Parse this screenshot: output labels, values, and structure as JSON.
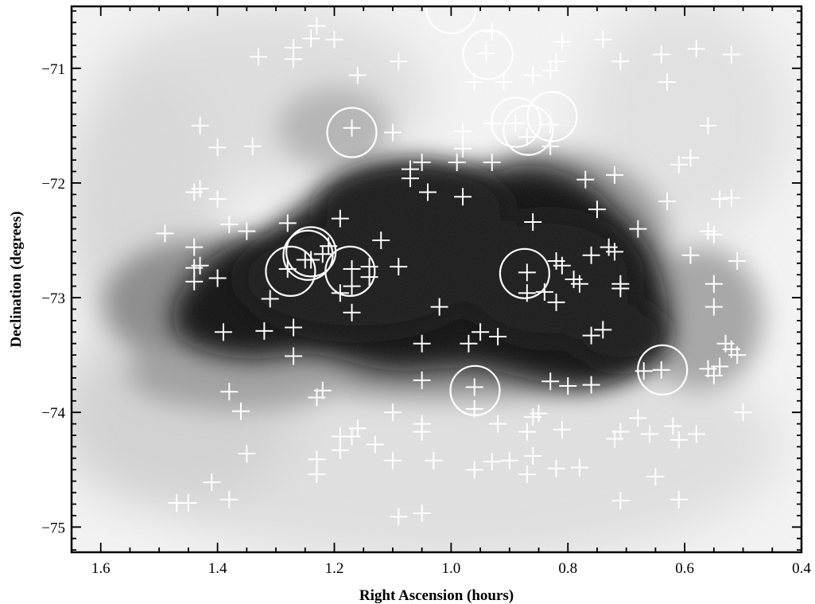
{
  "chart_data": {
    "type": "scatter",
    "xlabel": "Right Ascension (hours)",
    "ylabel": "Declination (degrees)",
    "xlim": [
      1.65,
      0.4
    ],
    "ylim": [
      -75.22,
      -70.46
    ],
    "x_ticks": [
      "1.6",
      "1.4",
      "1.2",
      "1.0",
      "0.8",
      "0.6",
      "0.4"
    ],
    "y_ticks": [
      "-71",
      "-72",
      "-73",
      "-74",
      "-75"
    ],
    "x_reversed": true,
    "background": "greyscale HI column density image of the Small Magellanic Cloud",
    "series": [
      {
        "marker": "plus",
        "color": "#ffffff",
        "points": [
          [
            1.23,
            -70.63
          ],
          [
            1.27,
            -70.82
          ],
          [
            1.24,
            -70.74
          ],
          [
            1.2,
            -70.75
          ],
          [
            1.33,
            -70.9
          ],
          [
            1.27,
            -70.92
          ],
          [
            1.09,
            -70.94
          ],
          [
            0.94,
            -70.87
          ],
          [
            0.93,
            -70.68
          ],
          [
            0.81,
            -70.77
          ],
          [
            0.82,
            -70.94
          ],
          [
            0.74,
            -70.75
          ],
          [
            0.71,
            -70.94
          ],
          [
            0.64,
            -70.88
          ],
          [
            0.58,
            -70.83
          ],
          [
            0.52,
            -70.88
          ],
          [
            0.63,
            -71.12
          ],
          [
            0.96,
            -71.12
          ],
          [
            0.91,
            -71.12
          ],
          [
            0.86,
            -71.06
          ],
          [
            0.83,
            -71.02
          ],
          [
            1.16,
            -71.06
          ],
          [
            1.43,
            -71.5
          ],
          [
            1.4,
            -71.69
          ],
          [
            1.34,
            -71.68
          ],
          [
            1.17,
            -71.52
          ],
          [
            1.1,
            -71.56
          ],
          [
            0.98,
            -71.55
          ],
          [
            0.93,
            -71.48
          ],
          [
            0.89,
            -71.48
          ],
          [
            0.83,
            -71.49
          ],
          [
            0.87,
            -71.6
          ],
          [
            0.83,
            -71.68
          ],
          [
            0.56,
            -71.5
          ],
          [
            0.59,
            -71.78
          ],
          [
            0.61,
            -71.84
          ],
          [
            0.98,
            -71.7
          ],
          [
            0.93,
            -71.82
          ],
          [
            0.99,
            -71.82
          ],
          [
            1.05,
            -71.82
          ],
          [
            1.07,
            -71.88
          ],
          [
            1.07,
            -71.96
          ],
          [
            0.77,
            -71.97
          ],
          [
            0.72,
            -71.93
          ],
          [
            1.43,
            -72.05
          ],
          [
            1.44,
            -72.08
          ],
          [
            1.4,
            -72.14
          ],
          [
            1.04,
            -72.08
          ],
          [
            0.98,
            -72.12
          ],
          [
            0.63,
            -72.16
          ],
          [
            0.54,
            -72.14
          ],
          [
            0.52,
            -72.13
          ],
          [
            1.38,
            -72.36
          ],
          [
            1.35,
            -72.42
          ],
          [
            1.28,
            -72.35
          ],
          [
            1.19,
            -72.31
          ],
          [
            1.49,
            -72.44
          ],
          [
            1.44,
            -72.56
          ],
          [
            1.21,
            -72.55
          ],
          [
            1.12,
            -72.5
          ],
          [
            0.86,
            -72.34
          ],
          [
            0.75,
            -72.23
          ],
          [
            0.68,
            -72.4
          ],
          [
            0.56,
            -72.42
          ],
          [
            0.55,
            -72.45
          ],
          [
            0.59,
            -72.63
          ],
          [
            0.51,
            -72.68
          ],
          [
            1.44,
            -72.74
          ],
          [
            1.43,
            -72.72
          ],
          [
            1.4,
            -72.83
          ],
          [
            1.44,
            -72.86
          ],
          [
            1.28,
            -72.75
          ],
          [
            1.25,
            -72.67
          ],
          [
            1.24,
            -72.67
          ],
          [
            1.22,
            -72.62
          ],
          [
            1.17,
            -72.75
          ],
          [
            1.14,
            -72.73
          ],
          [
            1.14,
            -72.82
          ],
          [
            1.09,
            -72.73
          ],
          [
            0.73,
            -72.56
          ],
          [
            0.72,
            -72.6
          ],
          [
            0.76,
            -72.63
          ],
          [
            0.82,
            -72.68
          ],
          [
            0.81,
            -72.72
          ],
          [
            0.87,
            -72.78
          ],
          [
            0.79,
            -72.84
          ],
          [
            0.78,
            -72.88
          ],
          [
            0.71,
            -72.88
          ],
          [
            0.71,
            -72.92
          ],
          [
            0.55,
            -72.88
          ],
          [
            1.31,
            -73.01
          ],
          [
            1.19,
            -72.96
          ],
          [
            1.17,
            -72.9
          ],
          [
            1.02,
            -73.08
          ],
          [
            0.87,
            -72.96
          ],
          [
            0.84,
            -72.95
          ],
          [
            0.82,
            -73.04
          ],
          [
            0.55,
            -73.08
          ],
          [
            1.39,
            -73.3
          ],
          [
            1.32,
            -73.29
          ],
          [
            1.27,
            -73.26
          ],
          [
            1.17,
            -73.13
          ],
          [
            0.92,
            -73.34
          ],
          [
            0.95,
            -73.3
          ],
          [
            0.97,
            -73.4
          ],
          [
            0.76,
            -73.33
          ],
          [
            0.74,
            -73.28
          ],
          [
            1.05,
            -73.4
          ],
          [
            1.27,
            -73.51
          ],
          [
            0.53,
            -73.4
          ],
          [
            0.52,
            -73.45
          ],
          [
            0.51,
            -73.5
          ],
          [
            0.54,
            -73.6
          ],
          [
            0.56,
            -73.62
          ],
          [
            0.55,
            -73.68
          ],
          [
            0.64,
            -73.63
          ],
          [
            0.67,
            -73.64
          ],
          [
            1.38,
            -73.82
          ],
          [
            1.36,
            -73.99
          ],
          [
            1.22,
            -73.81
          ],
          [
            1.23,
            -73.87
          ],
          [
            1.05,
            -73.72
          ],
          [
            0.96,
            -73.78
          ],
          [
            0.96,
            -73.97
          ],
          [
            0.83,
            -73.73
          ],
          [
            0.8,
            -73.77
          ],
          [
            0.76,
            -73.76
          ],
          [
            1.1,
            -74.0
          ],
          [
            0.85,
            -74.01
          ],
          [
            0.86,
            -74.04
          ],
          [
            0.68,
            -74.05
          ],
          [
            0.5,
            -74.0
          ],
          [
            1.16,
            -74.14
          ],
          [
            1.05,
            -74.1
          ],
          [
            1.05,
            -74.17
          ],
          [
            1.17,
            -74.21
          ],
          [
            1.19,
            -74.21
          ],
          [
            1.13,
            -74.28
          ],
          [
            0.92,
            -74.1
          ],
          [
            0.87,
            -74.17
          ],
          [
            0.81,
            -74.15
          ],
          [
            0.71,
            -74.17
          ],
          [
            0.72,
            -74.23
          ],
          [
            0.66,
            -74.19
          ],
          [
            0.62,
            -74.12
          ],
          [
            0.58,
            -74.19
          ],
          [
            0.61,
            -74.24
          ],
          [
            1.35,
            -74.36
          ],
          [
            1.23,
            -74.41
          ],
          [
            1.23,
            -74.54
          ],
          [
            1.19,
            -74.33
          ],
          [
            1.1,
            -74.42
          ],
          [
            1.03,
            -74.42
          ],
          [
            0.93,
            -74.43
          ],
          [
            0.9,
            -74.42
          ],
          [
            0.86,
            -74.38
          ],
          [
            0.87,
            -74.54
          ],
          [
            0.96,
            -74.5
          ],
          [
            0.82,
            -74.49
          ],
          [
            0.78,
            -74.48
          ],
          [
            1.41,
            -74.61
          ],
          [
            1.38,
            -74.76
          ],
          [
            1.47,
            -74.79
          ],
          [
            1.45,
            -74.79
          ],
          [
            1.09,
            -74.91
          ],
          [
            1.05,
            -74.88
          ],
          [
            0.71,
            -74.77
          ],
          [
            0.65,
            -74.56
          ],
          [
            0.61,
            -74.76
          ]
        ]
      },
      {
        "marker": "circle",
        "color": "#ffffff",
        "points": [
          [
            1.17,
            -71.56
          ],
          [
            0.937,
            -70.88
          ],
          [
            0.889,
            -71.47
          ],
          [
            0.868,
            -71.54
          ],
          [
            0.827,
            -71.42
          ],
          [
            1.245,
            -72.63
          ],
          [
            1.24,
            -72.6
          ],
          [
            1.275,
            -72.77
          ],
          [
            1.173,
            -72.77
          ],
          [
            0.874,
            -72.79
          ],
          [
            0.959,
            -73.81
          ],
          [
            0.638,
            -73.63
          ],
          [
            1.0,
            -70.48
          ]
        ]
      }
    ]
  }
}
